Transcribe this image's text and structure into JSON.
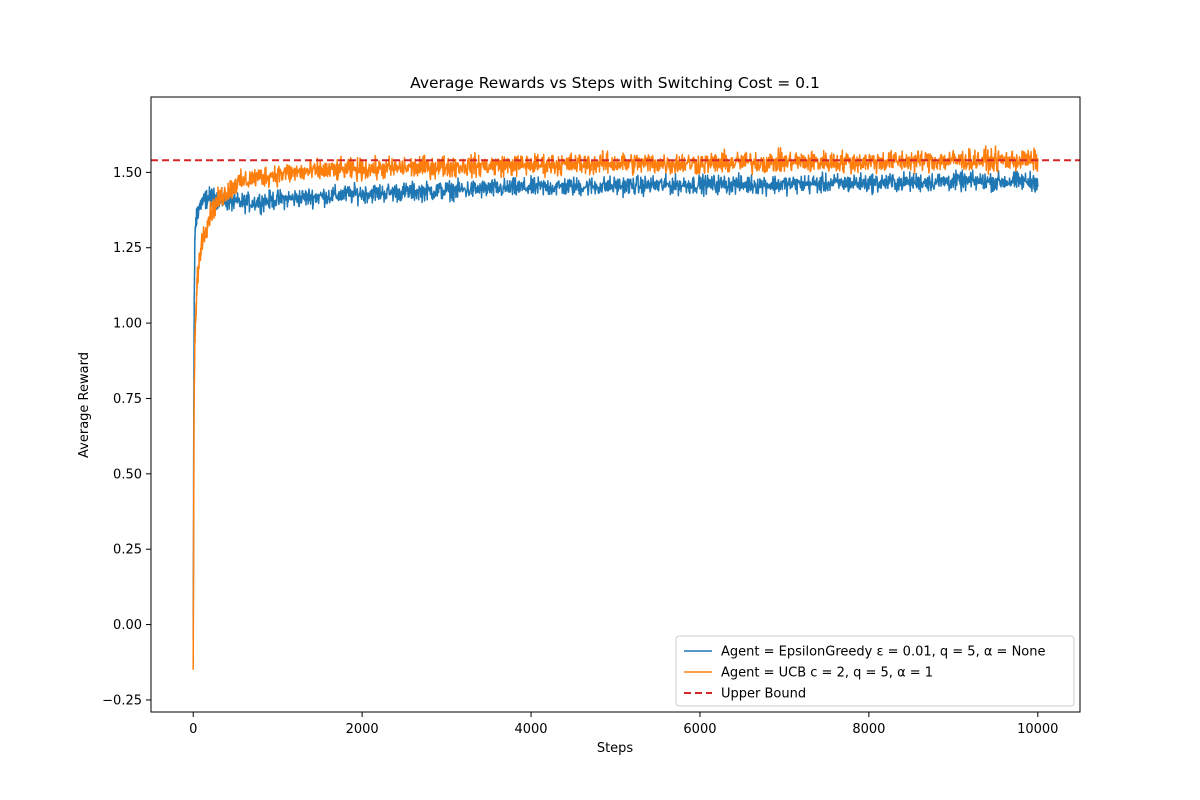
{
  "chart_data": {
    "type": "line",
    "title": "Average Rewards vs Steps with Switching Cost = 0.1",
    "xlabel": "Steps",
    "ylabel": "Average Reward",
    "xlim": [
      -500,
      10500
    ],
    "ylim": [
      -0.29,
      1.75
    ],
    "xticks": [
      0,
      2000,
      4000,
      6000,
      8000,
      10000
    ],
    "xtick_labels": [
      "0",
      "2000",
      "4000",
      "6000",
      "8000",
      "10000"
    ],
    "yticks": [
      -0.25,
      0.0,
      0.25,
      0.5,
      0.75,
      1.0,
      1.25,
      1.5
    ],
    "ytick_labels": [
      "−0.25",
      "0.00",
      "0.25",
      "0.50",
      "0.75",
      "1.00",
      "1.25",
      "1.50"
    ],
    "grid": false,
    "legend_position": "bottom-right",
    "upper_bound": 1.54,
    "series": [
      {
        "name": "Agent = EpsilonGreedy ε = 0.01, q = 5, α = None",
        "color": "#1f77b4",
        "style": "solid",
        "x": [
          0,
          10,
          20,
          50,
          100,
          200,
          300,
          500,
          700,
          1000,
          1500,
          2000,
          3000,
          4000,
          5000,
          6000,
          7000,
          8000,
          9000,
          10000
        ],
        "y": [
          -0.05,
          1.0,
          1.3,
          1.37,
          1.4,
          1.42,
          1.41,
          1.4,
          1.4,
          1.41,
          1.42,
          1.43,
          1.44,
          1.45,
          1.455,
          1.46,
          1.46,
          1.465,
          1.47,
          1.47
        ],
        "noise": 0.022
      },
      {
        "name": "Agent = UCB c = 2, q = 5, α = 1",
        "color": "#ff7f0e",
        "style": "solid",
        "x": [
          0,
          10,
          20,
          50,
          100,
          200,
          300,
          500,
          700,
          1000,
          1500,
          2000,
          3000,
          4000,
          5000,
          6000,
          7000,
          8000,
          9000,
          10000
        ],
        "y": [
          -0.13,
          0.72,
          0.95,
          1.15,
          1.27,
          1.36,
          1.41,
          1.46,
          1.48,
          1.495,
          1.505,
          1.51,
          1.52,
          1.525,
          1.53,
          1.53,
          1.535,
          1.535,
          1.54,
          1.54
        ],
        "noise": 0.022
      },
      {
        "name": "Upper Bound",
        "color": "#d62728",
        "style": "dashed",
        "x": [
          -500,
          10500
        ],
        "y": [
          1.54,
          1.54
        ]
      }
    ]
  }
}
